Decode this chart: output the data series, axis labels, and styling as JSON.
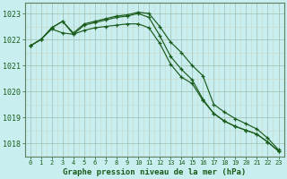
{
  "title": "Graphe pression niveau de la mer (hPa)",
  "background_color": "#c8eef0",
  "grid_major_color": "#b0cece",
  "grid_minor_color": "#dde8e8",
  "line_color": "#1a5c1a",
  "x_values": [
    0,
    1,
    2,
    3,
    4,
    5,
    6,
    7,
    8,
    9,
    10,
    11,
    12,
    13,
    14,
    15,
    16,
    17,
    18,
    19,
    20,
    21,
    22,
    23
  ],
  "series1": [
    1021.75,
    1022.0,
    1022.45,
    1022.7,
    1022.25,
    1022.6,
    1022.7,
    1022.8,
    1022.9,
    1022.95,
    1023.05,
    1023.0,
    1022.5,
    1021.9,
    1021.5,
    1021.0,
    1020.6,
    1019.5,
    1019.2,
    1018.95,
    1018.75,
    1018.55,
    1018.2,
    1017.75
  ],
  "series2": [
    1021.75,
    1022.0,
    1022.45,
    1022.7,
    1022.2,
    1022.55,
    1022.65,
    1022.75,
    1022.85,
    1022.9,
    1023.0,
    1022.85,
    1022.15,
    1021.35,
    1020.85,
    1020.45,
    1019.7,
    1019.15,
    1018.85,
    1018.65,
    1018.5,
    1018.35,
    1018.05,
    1017.7
  ],
  "series3": [
    1021.75,
    1022.0,
    1022.4,
    1022.25,
    1022.2,
    1022.35,
    1022.45,
    1022.5,
    1022.55,
    1022.6,
    1022.6,
    1022.45,
    1021.85,
    1021.05,
    1020.55,
    1020.3,
    1019.65,
    1019.15,
    1018.85,
    1018.65,
    1018.5,
    1018.35,
    1018.05,
    1017.7
  ],
  "ylim": [
    1017.5,
    1023.4
  ],
  "yticks": [
    1018,
    1019,
    1020,
    1021,
    1022,
    1023
  ],
  "figsize": [
    3.2,
    2.0
  ],
  "dpi": 100
}
